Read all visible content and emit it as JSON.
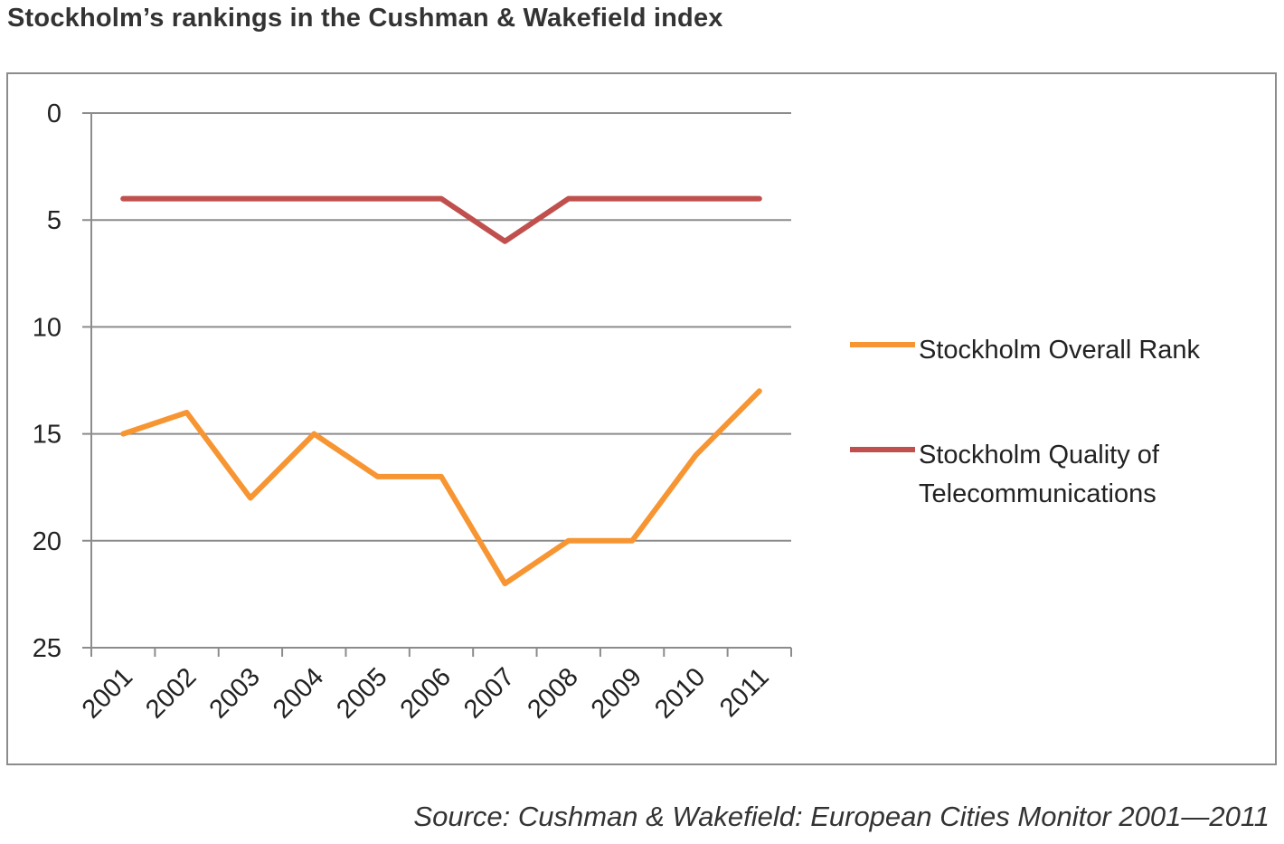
{
  "chart_data": {
    "type": "line",
    "title": "Stockholm’s rankings in the Cushman & Wakefield index",
    "x": [
      "2001",
      "2002",
      "2003",
      "2004",
      "2005",
      "2006",
      "2007",
      "2008",
      "2009",
      "2010",
      "2011"
    ],
    "y_ticks": [
      "0",
      "5",
      "10",
      "15",
      "20",
      "25"
    ],
    "ylim": [
      0,
      25
    ],
    "y_inverted": true,
    "grid": "horizontal",
    "legend_position": "right",
    "series": [
      {
        "name": "Stockholm Overall Rank",
        "color": "#f79533",
        "values": [
          15,
          14,
          18,
          15,
          17,
          17,
          22,
          20,
          20,
          16,
          13
        ]
      },
      {
        "name": "Stockholm Quality of Telecommunications",
        "color": "#c0504d",
        "values": [
          4,
          4,
          4,
          4,
          4,
          4,
          6,
          4,
          4,
          4,
          4
        ]
      }
    ],
    "legend": {
      "overall_label": "Stockholm Overall Rank",
      "telecom_label_line1": "Stockholm Quality of",
      "telecom_label_line2": "Telecommunications"
    }
  },
  "source": "Source: Cushman & Wakefield: European Cities Monitor 2001—2011"
}
